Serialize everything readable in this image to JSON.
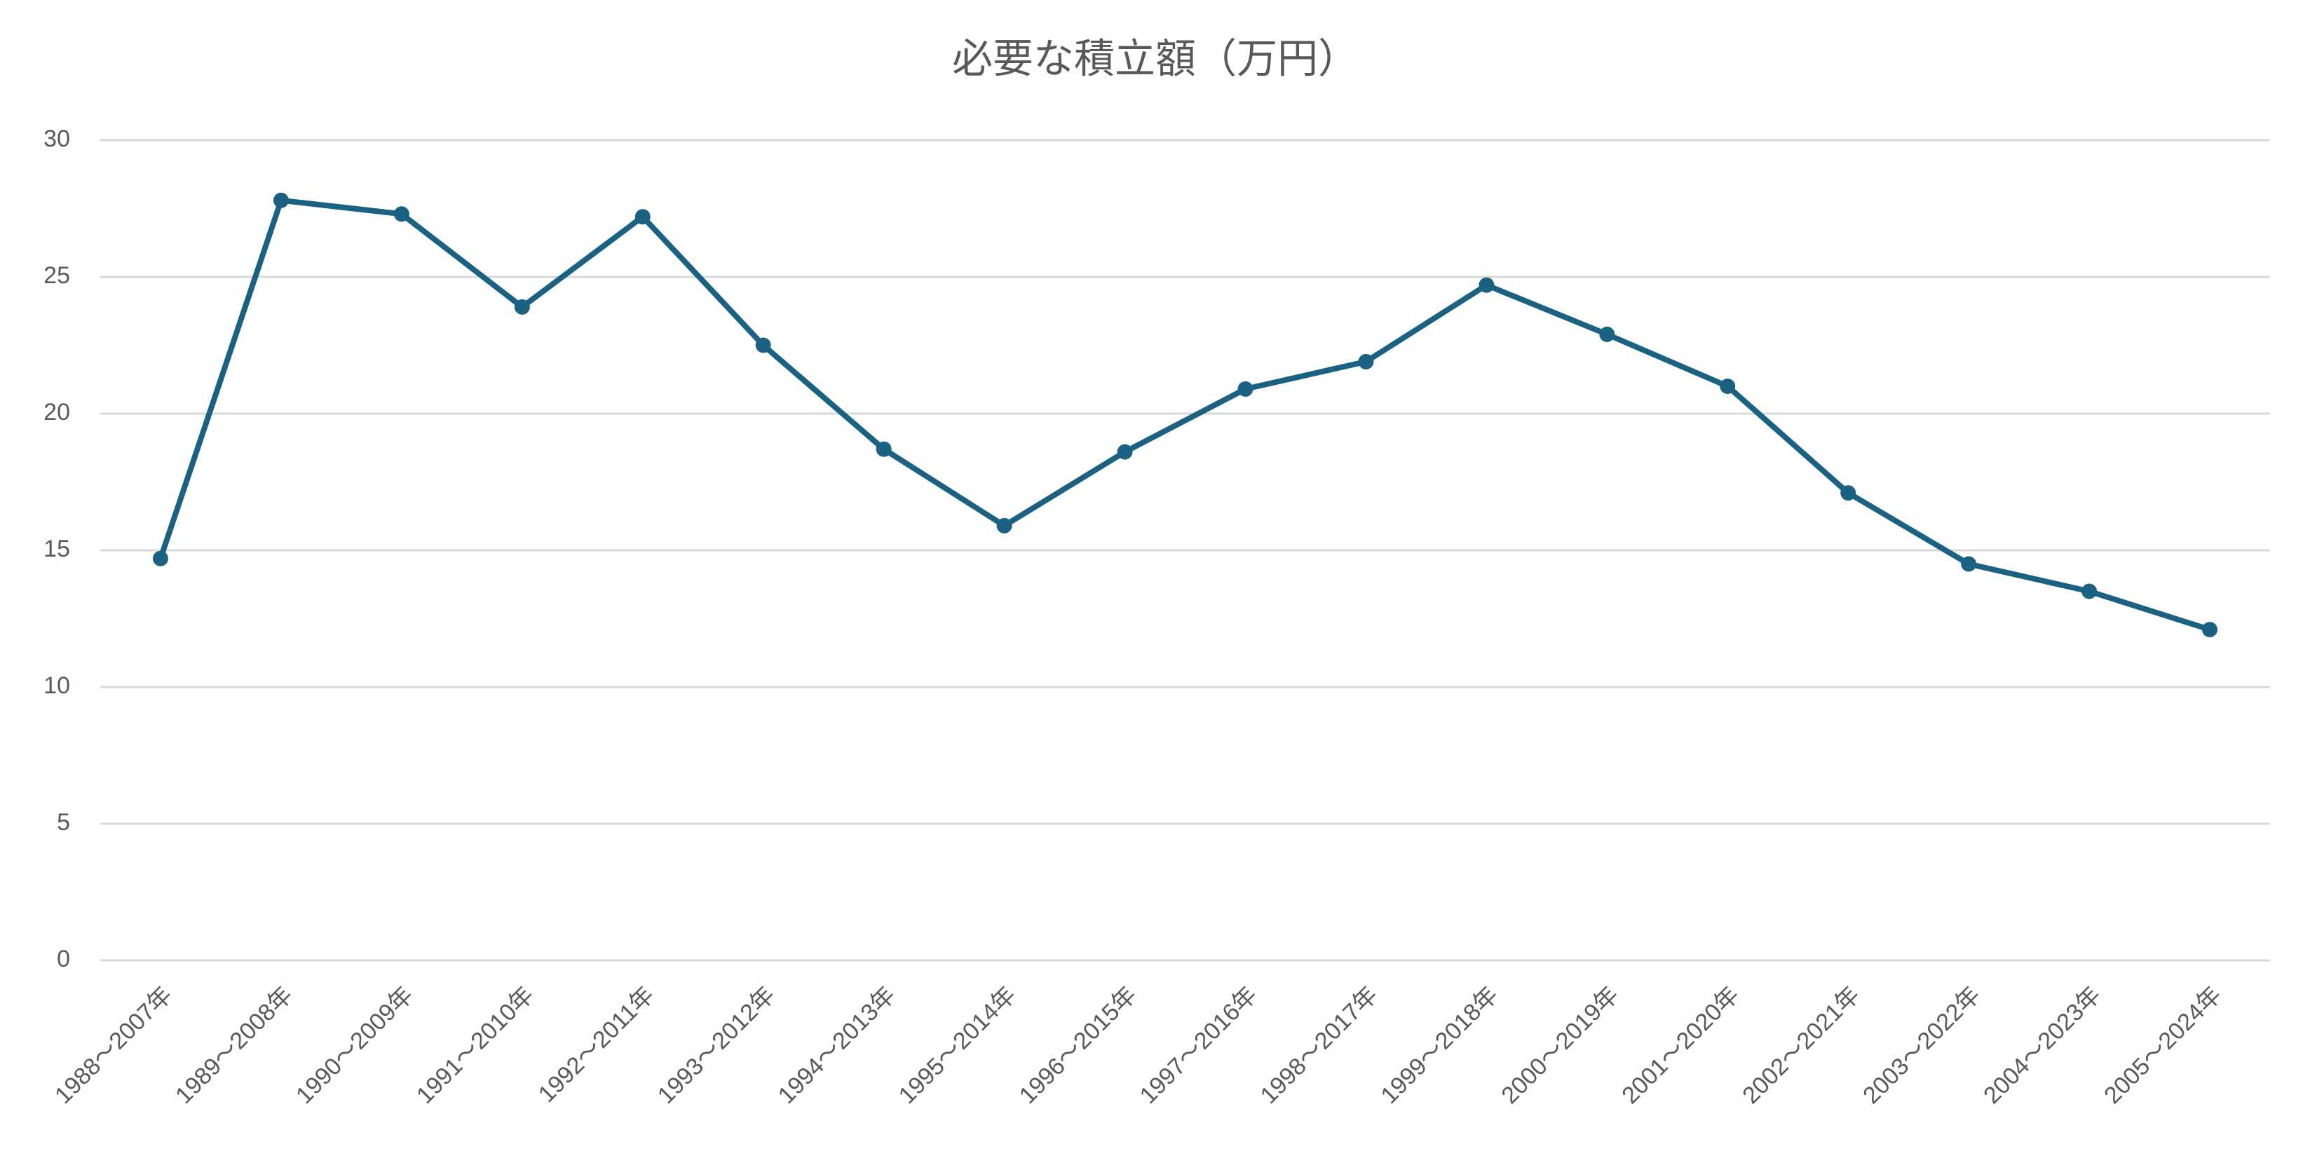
{
  "chart_data": {
    "type": "line",
    "title": "必要な積立額（万円）",
    "categories": [
      "1988～2007年",
      "1989～2008年",
      "1990～2009年",
      "1991～2010年",
      "1992～2011年",
      "1993～2012年",
      "1994～2013年",
      "1995～2014年",
      "1996～2015年",
      "1997～2016年",
      "1998～2017年",
      "1999～2018年",
      "2000～2019年",
      "2001～2020年",
      "2002～2021年",
      "2003～2022年",
      "2004～2023年",
      "2005～2024年"
    ],
    "values": [
      14.7,
      27.8,
      27.3,
      23.9,
      27.2,
      22.5,
      18.7,
      15.9,
      18.6,
      20.9,
      21.9,
      24.7,
      22.9,
      21.0,
      17.1,
      14.5,
      13.5,
      12.1
    ],
    "color": "#1b6282",
    "ylim": [
      0,
      30
    ],
    "yticks": [
      0,
      5,
      10,
      15,
      20,
      25,
      30
    ],
    "grid": true
  }
}
